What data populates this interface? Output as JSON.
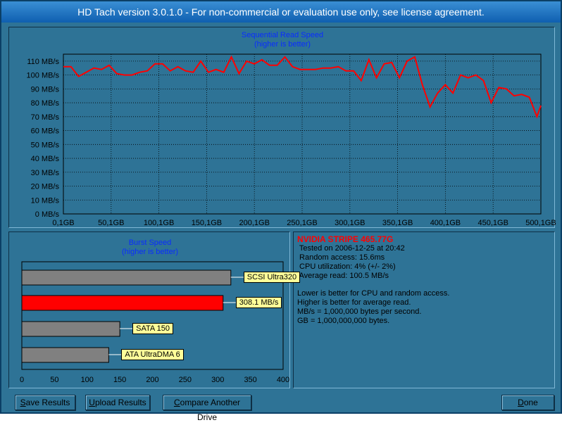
{
  "window": {
    "title": "HD Tach version 3.0.1.0  - For non-commercial or evaluation use only, see license agreement."
  },
  "colors": {
    "background": "#2e7396",
    "read_line": "#ff0000",
    "title_blue": "#0a2cff",
    "bar_gray": "#808080",
    "bar_highlight": "#ff0000",
    "label_yellow": "#ffff99"
  },
  "chart_data": [
    {
      "type": "line",
      "title": "Sequential Read Speed",
      "subtitle": "(higher is better)",
      "yticks": [
        "0 MB/s",
        "10 MB/s",
        "20 MB/s",
        "30 MB/s",
        "40 MB/s",
        "50 MB/s",
        "60 MB/s",
        "70 MB/s",
        "80 MB/s",
        "90 MB/s",
        "100 MB/s",
        "110 MB/s"
      ],
      "xticks": [
        "0,1GB",
        "50,1GB",
        "100,1GB",
        "150,1GB",
        "200,1GB",
        "250,1GB",
        "300,1GB",
        "350,1GB",
        "400,1GB",
        "450,1GB",
        "500,1GB"
      ],
      "ylim": [
        0,
        115
      ],
      "xlim": [
        0.1,
        500.1
      ],
      "grid": true,
      "series": [
        {
          "x": [
            0.1,
            8,
            16,
            24,
            32,
            40,
            48,
            56,
            64,
            72,
            80,
            88,
            96,
            104,
            112,
            120,
            128,
            136,
            144,
            152,
            160,
            168,
            176,
            184,
            192,
            200,
            208,
            216,
            224,
            232,
            240,
            248,
            256,
            264,
            272,
            280,
            288,
            296,
            304,
            312,
            320,
            328,
            336,
            344,
            352,
            360,
            368,
            376,
            384,
            392,
            400,
            408,
            416,
            424,
            432,
            440,
            448,
            456,
            464,
            472,
            480,
            488,
            496,
            500.1
          ],
          "y": [
            106,
            106,
            99,
            102,
            105,
            104,
            107,
            101,
            100,
            100,
            102,
            103,
            108,
            108,
            103,
            106,
            103,
            102,
            110,
            102,
            104,
            102,
            113,
            101,
            110,
            108,
            111,
            107,
            107,
            113,
            106,
            104,
            104,
            104,
            105,
            105,
            106,
            103,
            103,
            96,
            111,
            98,
            108,
            109,
            98,
            110,
            113,
            93,
            77,
            87,
            93,
            87,
            100,
            98,
            100,
            96,
            80,
            91,
            90,
            85,
            86,
            84,
            70,
            78
          ]
        }
      ]
    },
    {
      "type": "bar",
      "title": "Burst Speed",
      "subtitle": "(higher is better)",
      "xticks": [
        "0",
        "50",
        "100",
        "150",
        "200",
        "250",
        "300",
        "350",
        "400"
      ],
      "xlim": [
        0,
        400
      ],
      "categories": [
        "SCSI Ultra320",
        "308.1 MB/s",
        "SATA 150",
        "ATA UltraDMA 6"
      ],
      "values": [
        320,
        308.1,
        150,
        133
      ]
    }
  ],
  "info": {
    "drive": "NVIDIA STRIPE 465.77G",
    "lines": [
      " Tested on 2006-12-25 at 20:42",
      " Random access: 15.6ms",
      " CPU utilization: 4% (+/- 2%)",
      " Average read: 100.5 MB/s"
    ],
    "notes": [
      "Lower is better for CPU and random access.",
      "Higher is better for average read.",
      "MB/s = 1,000,000 bytes per second.",
      "GB = 1,000,000,000 bytes."
    ]
  },
  "buttons": {
    "save": {
      "u": "S",
      "rest": "ave Results"
    },
    "upload": {
      "u": "U",
      "rest": "pload Results"
    },
    "compare": {
      "u": "C",
      "rest": "ompare Another Drive"
    },
    "done": {
      "u": "D",
      "rest": "one"
    }
  }
}
